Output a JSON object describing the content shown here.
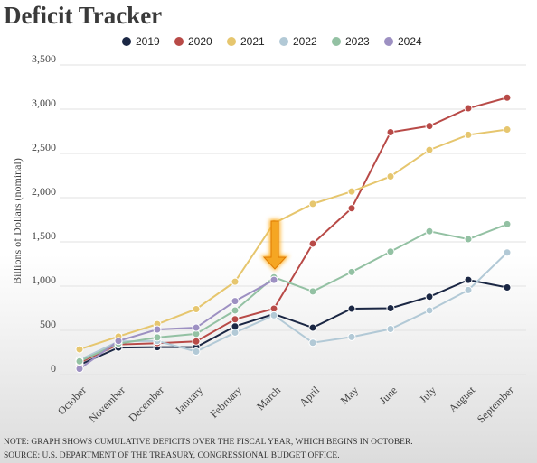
{
  "chart_data": {
    "type": "line",
    "title": "Deficit Tracker",
    "ylabel": "Billions of Dollars (nominal)",
    "categories": [
      "October",
      "November",
      "December",
      "January",
      "February",
      "March",
      "April",
      "May",
      "June",
      "July",
      "August",
      "September"
    ],
    "series": [
      {
        "name": "2019",
        "color": "#1b2744",
        "values": [
          110,
          305,
          310,
          310,
          545,
          685,
          530,
          745,
          750,
          880,
          1070,
          985
        ]
      },
      {
        "name": "2020",
        "color": "#b84a47",
        "values": [
          135,
          340,
          355,
          375,
          625,
          745,
          1480,
          1880,
          2740,
          2810,
          3010,
          3130
        ]
      },
      {
        "name": "2021",
        "color": "#e6c66e",
        "values": [
          285,
          430,
          570,
          740,
          1050,
          1710,
          1930,
          2070,
          2240,
          2540,
          2710,
          2770
        ]
      },
      {
        "name": "2022",
        "color": "#b2c9d6",
        "values": [
          165,
          375,
          380,
          260,
          475,
          670,
          360,
          425,
          515,
          725,
          955,
          1380
        ]
      },
      {
        "name": "2023",
        "color": "#93c1a3",
        "values": [
          150,
          350,
          420,
          460,
          725,
          1100,
          940,
          1160,
          1390,
          1620,
          1530,
          1700
        ]
      },
      {
        "name": "2024",
        "color": "#9d90c2",
        "values": [
          65,
          380,
          510,
          530,
          830,
          1070,
          null,
          null,
          null,
          null,
          null,
          null
        ]
      }
    ],
    "ylim": [
      0,
      3500
    ],
    "yticks": [
      0,
      500,
      {
        "value": 1000,
        "label": "1,000"
      },
      {
        "value": 1500,
        "label": "1,500"
      },
      {
        "value": 2000,
        "label": "2,000"
      },
      {
        "value": 2500,
        "label": "2,500"
      },
      {
        "value": 3000,
        "label": "3,000"
      },
      {
        "value": 3500,
        "label": "3,500"
      }
    ],
    "grid": true,
    "notes": [
      "NOTE: GRAPH SHOWS CUMULATIVE DEFICITS OVER THE FISCAL YEAR, WHICH BEGINS IN OCTOBER.",
      "SOURCE: U.S. DEPARTMENT OF THE TREASURY, CONGRESSIONAL BUDGET OFFICE."
    ]
  }
}
